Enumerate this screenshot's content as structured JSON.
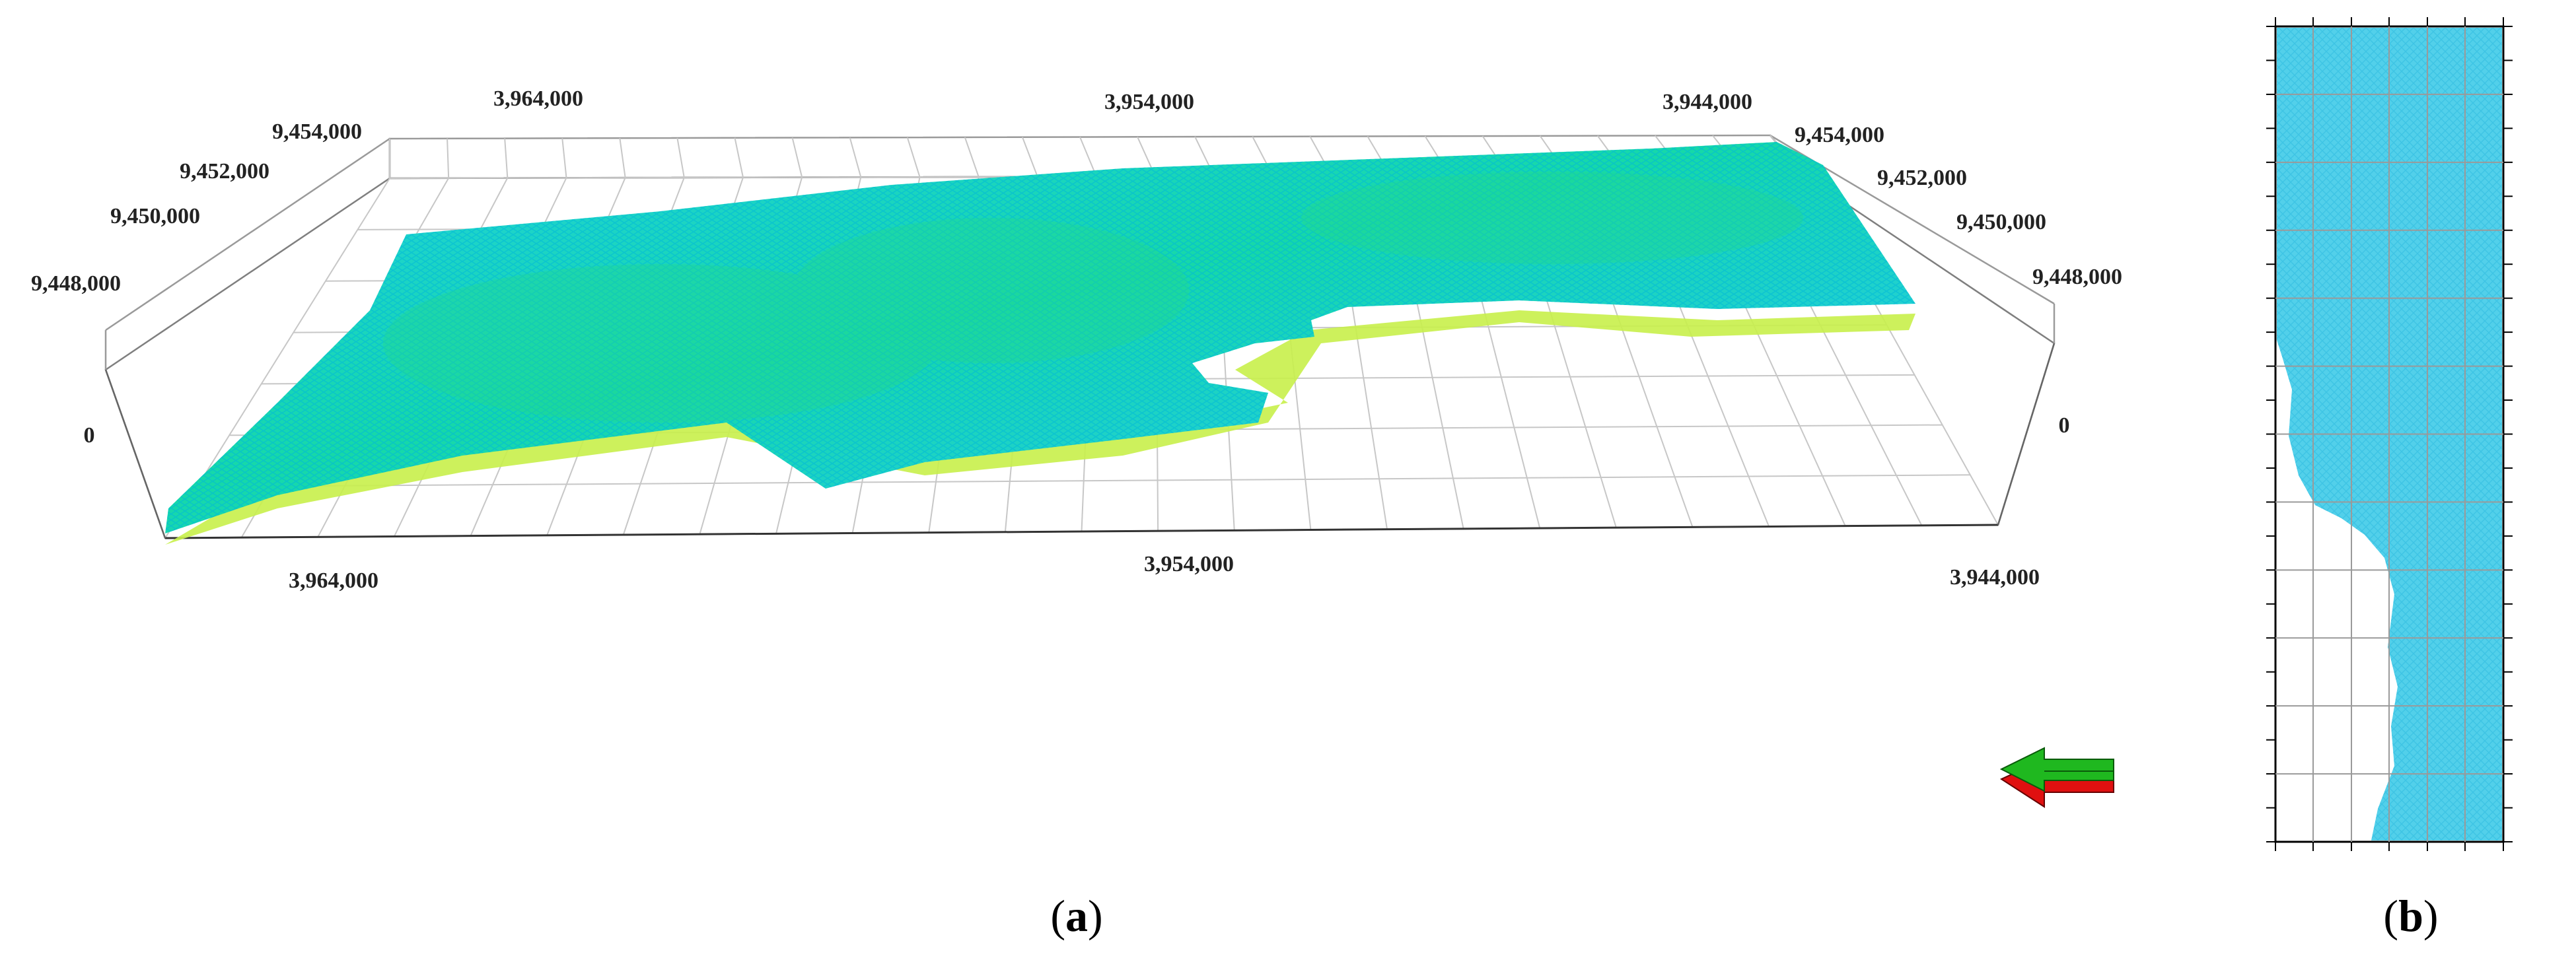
{
  "panel_a": {
    "caption_open": "(",
    "caption_letter": "a",
    "caption_close": ")",
    "back_top_ticks": [
      "3,964,000",
      "3,954,000",
      "3,944,000"
    ],
    "front_bottom_ticks": [
      "3,964,000",
      "3,954,000",
      "3,944,000"
    ],
    "left_depth_ticks": [
      "9,454,000",
      "9,452,000",
      "9,450,000",
      "9,448,000"
    ],
    "right_depth_ticks": [
      "9,454,000",
      "9,452,000",
      "9,450,000",
      "9,448,000"
    ],
    "left_vertical_tick": "0",
    "right_vertical_tick": "0",
    "orientation_arrow": "left-arrow-icon",
    "mesh_colors": [
      "#00c8e6",
      "#00e0a0",
      "#7fe83a",
      "#d8f000"
    ]
  },
  "panel_b": {
    "caption_open": "(",
    "caption_letter": "b",
    "caption_close": ")",
    "mesh_color": "#4fd0ea",
    "grid_color": "#9a9a9a"
  }
}
